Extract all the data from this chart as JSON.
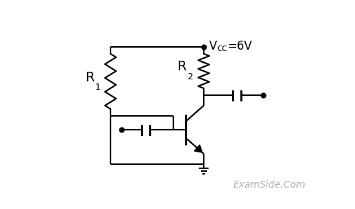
{
  "bg_color": "#ffffff",
  "line_color": "#000000",
  "text_color": "#000000",
  "watermark_color": "#b0b0b0",
  "watermark": "ExamSide.Com",
  "vcc_text": "V",
  "vcc_sub": "CC",
  "vcc_val": "=6V",
  "r1_label": "R",
  "r1_sub": "1",
  "r2_label": "R",
  "r2_sub": "2"
}
